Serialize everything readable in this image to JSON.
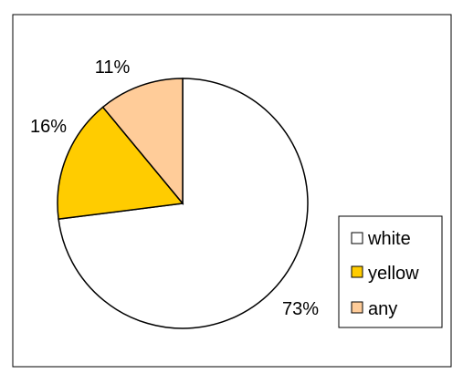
{
  "chart_data": {
    "type": "pie",
    "title": "",
    "categories": [
      "white",
      "yellow",
      "any"
    ],
    "values": [
      73,
      16,
      11
    ],
    "labels": [
      "73%",
      "16%",
      "11%"
    ],
    "colors": [
      "#FFFFFF",
      "#FFCC00",
      "#FFCC99"
    ],
    "legend": {
      "position": "right",
      "items": [
        "white",
        "yellow",
        "any"
      ]
    },
    "start_angle": "12 o'clock",
    "direction": "clockwise"
  }
}
